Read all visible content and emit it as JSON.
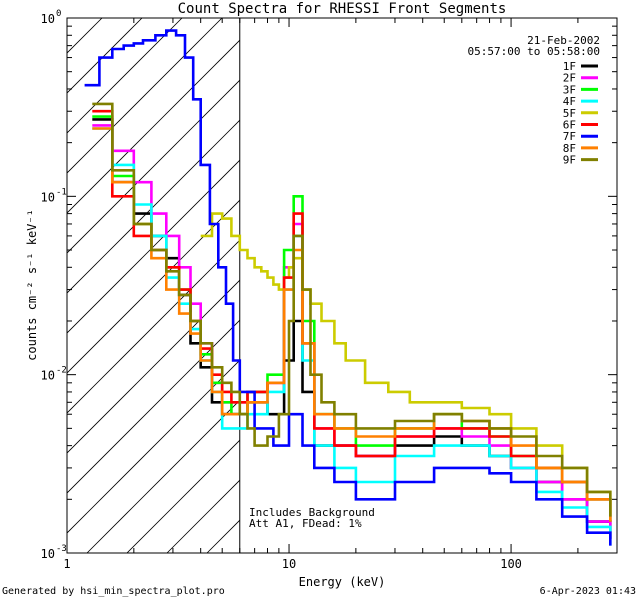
{
  "chart_data": {
    "type": "line",
    "title": "Count Spectra for RHESSI Front Segments",
    "xlabel": "Energy (keV)",
    "ylabel": "counts cm⁻² s⁻¹ keV⁻¹",
    "xscale": "log",
    "yscale": "log",
    "xlim": [
      1,
      300
    ],
    "ylim": [
      0.001,
      1
    ],
    "x_ticks": [
      {
        "value": 1,
        "label": "1"
      },
      {
        "value": 10,
        "label": "10"
      },
      {
        "value": 100,
        "label": "100"
      }
    ],
    "y_ticks": [
      {
        "value": 0.001,
        "base": "10",
        "exp": "-3"
      },
      {
        "value": 0.01,
        "base": "10",
        "exp": "-2"
      },
      {
        "value": 0.1,
        "base": "10",
        "exp": "-1"
      },
      {
        "value": 1,
        "base": "10",
        "exp": "0"
      }
    ],
    "date": "21-Feb-2002",
    "time_range": "05:57:00 to 05:58:00",
    "annotations": [
      "Includes Background",
      "Att A1, FDead: 1%"
    ],
    "footer_left": "Generated by hsi_min_spectra_plot.pro",
    "footer_right": "6-Apr-2023 01:43",
    "hatched_region_upper_keV": 6.0,
    "legend_position": "top-right",
    "series": [
      {
        "name": "1F",
        "color": "#000000",
        "points": [
          [
            1.3,
            0.27
          ],
          [
            1.6,
            0.12
          ],
          [
            2.0,
            0.08
          ],
          [
            2.4,
            0.06
          ],
          [
            2.8,
            0.045
          ],
          [
            3.2,
            0.028
          ],
          [
            3.6,
            0.015
          ],
          [
            4.0,
            0.011
          ],
          [
            4.5,
            0.007
          ],
          [
            5.0,
            0.006
          ],
          [
            5.5,
            0.006
          ],
          [
            6.5,
            0.007
          ],
          [
            8.0,
            0.006
          ],
          [
            9.5,
            0.012
          ],
          [
            10.5,
            0.02
          ],
          [
            11.5,
            0.008
          ],
          [
            13,
            0.004
          ],
          [
            16,
            0.004
          ],
          [
            20,
            0.0035
          ],
          [
            30,
            0.004
          ],
          [
            45,
            0.0045
          ],
          [
            60,
            0.004
          ],
          [
            80,
            0.0035
          ],
          [
            100,
            0.003
          ],
          [
            130,
            0.0025
          ],
          [
            170,
            0.002
          ],
          [
            220,
            0.0015
          ],
          [
            280,
            0.0012
          ]
        ]
      },
      {
        "name": "2F",
        "color": "#ff00ff",
        "points": [
          [
            1.3,
            0.25
          ],
          [
            1.6,
            0.18
          ],
          [
            2.0,
            0.12
          ],
          [
            2.4,
            0.08
          ],
          [
            2.8,
            0.06
          ],
          [
            3.2,
            0.04
          ],
          [
            3.6,
            0.025
          ],
          [
            4.0,
            0.015
          ],
          [
            4.5,
            0.009
          ],
          [
            5.0,
            0.007
          ],
          [
            5.5,
            0.007
          ],
          [
            6.5,
            0.008
          ],
          [
            8.0,
            0.009
          ],
          [
            9.5,
            0.04
          ],
          [
            10.5,
            0.07
          ],
          [
            11.5,
            0.015
          ],
          [
            13,
            0.005
          ],
          [
            16,
            0.004
          ],
          [
            20,
            0.0035
          ],
          [
            30,
            0.0045
          ],
          [
            45,
            0.005
          ],
          [
            60,
            0.0045
          ],
          [
            80,
            0.004
          ],
          [
            100,
            0.003
          ],
          [
            130,
            0.0025
          ],
          [
            170,
            0.002
          ],
          [
            220,
            0.0015
          ],
          [
            280,
            0.0012
          ]
        ]
      },
      {
        "name": "3F",
        "color": "#00ff00",
        "points": [
          [
            1.3,
            0.28
          ],
          [
            1.6,
            0.13
          ],
          [
            2.0,
            0.07
          ],
          [
            2.4,
            0.05
          ],
          [
            2.8,
            0.04
          ],
          [
            3.2,
            0.03
          ],
          [
            3.6,
            0.02
          ],
          [
            4.0,
            0.013
          ],
          [
            4.5,
            0.009
          ],
          [
            5.0,
            0.007
          ],
          [
            5.5,
            0.006
          ],
          [
            6.5,
            0.008
          ],
          [
            8.0,
            0.01
          ],
          [
            9.5,
            0.05
          ],
          [
            10.5,
            0.1
          ],
          [
            11.5,
            0.02
          ],
          [
            13,
            0.006
          ],
          [
            16,
            0.005
          ],
          [
            20,
            0.004
          ],
          [
            30,
            0.005
          ],
          [
            45,
            0.006
          ],
          [
            60,
            0.005
          ],
          [
            80,
            0.0045
          ],
          [
            100,
            0.0035
          ],
          [
            130,
            0.003
          ],
          [
            170,
            0.0025
          ],
          [
            220,
            0.002
          ],
          [
            280,
            0.0015
          ]
        ]
      },
      {
        "name": "4F",
        "color": "#00ffff",
        "points": [
          [
            1.3,
            0.24
          ],
          [
            1.6,
            0.15
          ],
          [
            2.0,
            0.09
          ],
          [
            2.4,
            0.06
          ],
          [
            2.8,
            0.035
          ],
          [
            3.2,
            0.025
          ],
          [
            3.6,
            0.018
          ],
          [
            4.0,
            0.012
          ],
          [
            4.5,
            0.008
          ],
          [
            5.0,
            0.005
          ],
          [
            5.5,
            0.005
          ],
          [
            6.5,
            0.006
          ],
          [
            8.0,
            0.008
          ],
          [
            9.5,
            0.03
          ],
          [
            10.5,
            0.06
          ],
          [
            11.5,
            0.012
          ],
          [
            13,
            0.004
          ],
          [
            16,
            0.003
          ],
          [
            20,
            0.0025
          ],
          [
            30,
            0.0035
          ],
          [
            45,
            0.004
          ],
          [
            60,
            0.004
          ],
          [
            80,
            0.0035
          ],
          [
            100,
            0.003
          ],
          [
            130,
            0.0022
          ],
          [
            170,
            0.0018
          ],
          [
            220,
            0.0014
          ],
          [
            280,
            0.0011
          ]
        ]
      },
      {
        "name": "5F",
        "color": "#cccc00",
        "points": [
          [
            4.0,
            0.06
          ],
          [
            4.5,
            0.08
          ],
          [
            5.0,
            0.075
          ],
          [
            5.5,
            0.06
          ],
          [
            6.0,
            0.05
          ],
          [
            6.5,
            0.045
          ],
          [
            7.0,
            0.04
          ],
          [
            7.5,
            0.038
          ],
          [
            8.0,
            0.035
          ],
          [
            8.5,
            0.032
          ],
          [
            9.0,
            0.03
          ],
          [
            9.5,
            0.035
          ],
          [
            10.0,
            0.04
          ],
          [
            10.5,
            0.045
          ],
          [
            11.5,
            0.03
          ],
          [
            12.5,
            0.025
          ],
          [
            14,
            0.02
          ],
          [
            16,
            0.015
          ],
          [
            18,
            0.012
          ],
          [
            22,
            0.009
          ],
          [
            28,
            0.008
          ],
          [
            35,
            0.007
          ],
          [
            45,
            0.007
          ],
          [
            60,
            0.0065
          ],
          [
            80,
            0.006
          ],
          [
            100,
            0.005
          ],
          [
            130,
            0.004
          ],
          [
            170,
            0.003
          ],
          [
            220,
            0.0022
          ],
          [
            280,
            0.0016
          ]
        ]
      },
      {
        "name": "6F",
        "color": "#ff0000",
        "points": [
          [
            1.3,
            0.3
          ],
          [
            1.6,
            0.1
          ],
          [
            2.0,
            0.06
          ],
          [
            2.4,
            0.05
          ],
          [
            2.8,
            0.04
          ],
          [
            3.2,
            0.03
          ],
          [
            3.6,
            0.02
          ],
          [
            4.0,
            0.014
          ],
          [
            4.5,
            0.01
          ],
          [
            5.0,
            0.008
          ],
          [
            5.5,
            0.007
          ],
          [
            6.5,
            0.008
          ],
          [
            8.0,
            0.009
          ],
          [
            9.5,
            0.035
          ],
          [
            10.5,
            0.08
          ],
          [
            11.5,
            0.015
          ],
          [
            13,
            0.005
          ],
          [
            16,
            0.004
          ],
          [
            20,
            0.0035
          ],
          [
            30,
            0.0045
          ],
          [
            45,
            0.005
          ],
          [
            60,
            0.005
          ],
          [
            80,
            0.0045
          ],
          [
            100,
            0.0035
          ],
          [
            130,
            0.003
          ],
          [
            170,
            0.0025
          ],
          [
            220,
            0.002
          ],
          [
            280,
            0.0015
          ]
        ]
      },
      {
        "name": "7F",
        "color": "#0000ff",
        "points": [
          [
            1.2,
            0.42
          ],
          [
            1.4,
            0.6
          ],
          [
            1.6,
            0.67
          ],
          [
            1.8,
            0.7
          ],
          [
            2.0,
            0.72
          ],
          [
            2.2,
            0.75
          ],
          [
            2.5,
            0.8
          ],
          [
            2.8,
            0.85
          ],
          [
            3.1,
            0.8
          ],
          [
            3.4,
            0.6
          ],
          [
            3.7,
            0.35
          ],
          [
            4.0,
            0.15
          ],
          [
            4.4,
            0.07
          ],
          [
            4.8,
            0.04
          ],
          [
            5.2,
            0.025
          ],
          [
            5.6,
            0.012
          ],
          [
            6.0,
            0.008
          ],
          [
            7.0,
            0.005
          ],
          [
            8.5,
            0.004
          ],
          [
            10,
            0.006
          ],
          [
            11.5,
            0.004
          ],
          [
            13,
            0.003
          ],
          [
            16,
            0.0025
          ],
          [
            20,
            0.002
          ],
          [
            30,
            0.0025
          ],
          [
            45,
            0.003
          ],
          [
            60,
            0.003
          ],
          [
            80,
            0.0028
          ],
          [
            100,
            0.0025
          ],
          [
            130,
            0.002
          ],
          [
            170,
            0.0016
          ],
          [
            220,
            0.0013
          ],
          [
            280,
            0.0011
          ]
        ]
      },
      {
        "name": "8F",
        "color": "#ff8000",
        "points": [
          [
            1.3,
            0.24
          ],
          [
            1.6,
            0.12
          ],
          [
            2.0,
            0.07
          ],
          [
            2.4,
            0.045
          ],
          [
            2.8,
            0.03
          ],
          [
            3.2,
            0.022
          ],
          [
            3.6,
            0.017
          ],
          [
            4.0,
            0.012
          ],
          [
            4.5,
            0.008
          ],
          [
            5.0,
            0.006
          ],
          [
            5.5,
            0.006
          ],
          [
            6.5,
            0.007
          ],
          [
            8.0,
            0.009
          ],
          [
            9.5,
            0.03
          ],
          [
            10.5,
            0.05
          ],
          [
            11.5,
            0.015
          ],
          [
            13,
            0.006
          ],
          [
            16,
            0.005
          ],
          [
            20,
            0.0045
          ],
          [
            30,
            0.005
          ],
          [
            45,
            0.006
          ],
          [
            60,
            0.0055
          ],
          [
            80,
            0.005
          ],
          [
            100,
            0.004
          ],
          [
            130,
            0.003
          ],
          [
            170,
            0.0025
          ],
          [
            220,
            0.002
          ],
          [
            280,
            0.0015
          ]
        ]
      },
      {
        "name": "9F",
        "color": "#808000",
        "points": [
          [
            1.3,
            0.33
          ],
          [
            1.6,
            0.14
          ],
          [
            2.0,
            0.07
          ],
          [
            2.4,
            0.05
          ],
          [
            2.8,
            0.038
          ],
          [
            3.2,
            0.028
          ],
          [
            3.6,
            0.02
          ],
          [
            4.0,
            0.015
          ],
          [
            4.5,
            0.011
          ],
          [
            5.0,
            0.009
          ],
          [
            5.5,
            0.008
          ],
          [
            6.0,
            0.006
          ],
          [
            6.5,
            0.005
          ],
          [
            7.0,
            0.004
          ],
          [
            8.0,
            0.0045
          ],
          [
            9.0,
            0.006
          ],
          [
            10.0,
            0.02
          ],
          [
            10.5,
            0.06
          ],
          [
            11.5,
            0.03
          ],
          [
            12.5,
            0.01
          ],
          [
            14,
            0.007
          ],
          [
            16,
            0.006
          ],
          [
            20,
            0.005
          ],
          [
            30,
            0.0055
          ],
          [
            45,
            0.006
          ],
          [
            60,
            0.0055
          ],
          [
            80,
            0.005
          ],
          [
            100,
            0.0045
          ],
          [
            130,
            0.0035
          ],
          [
            170,
            0.003
          ],
          [
            220,
            0.0022
          ],
          [
            280,
            0.0016
          ]
        ]
      }
    ]
  }
}
